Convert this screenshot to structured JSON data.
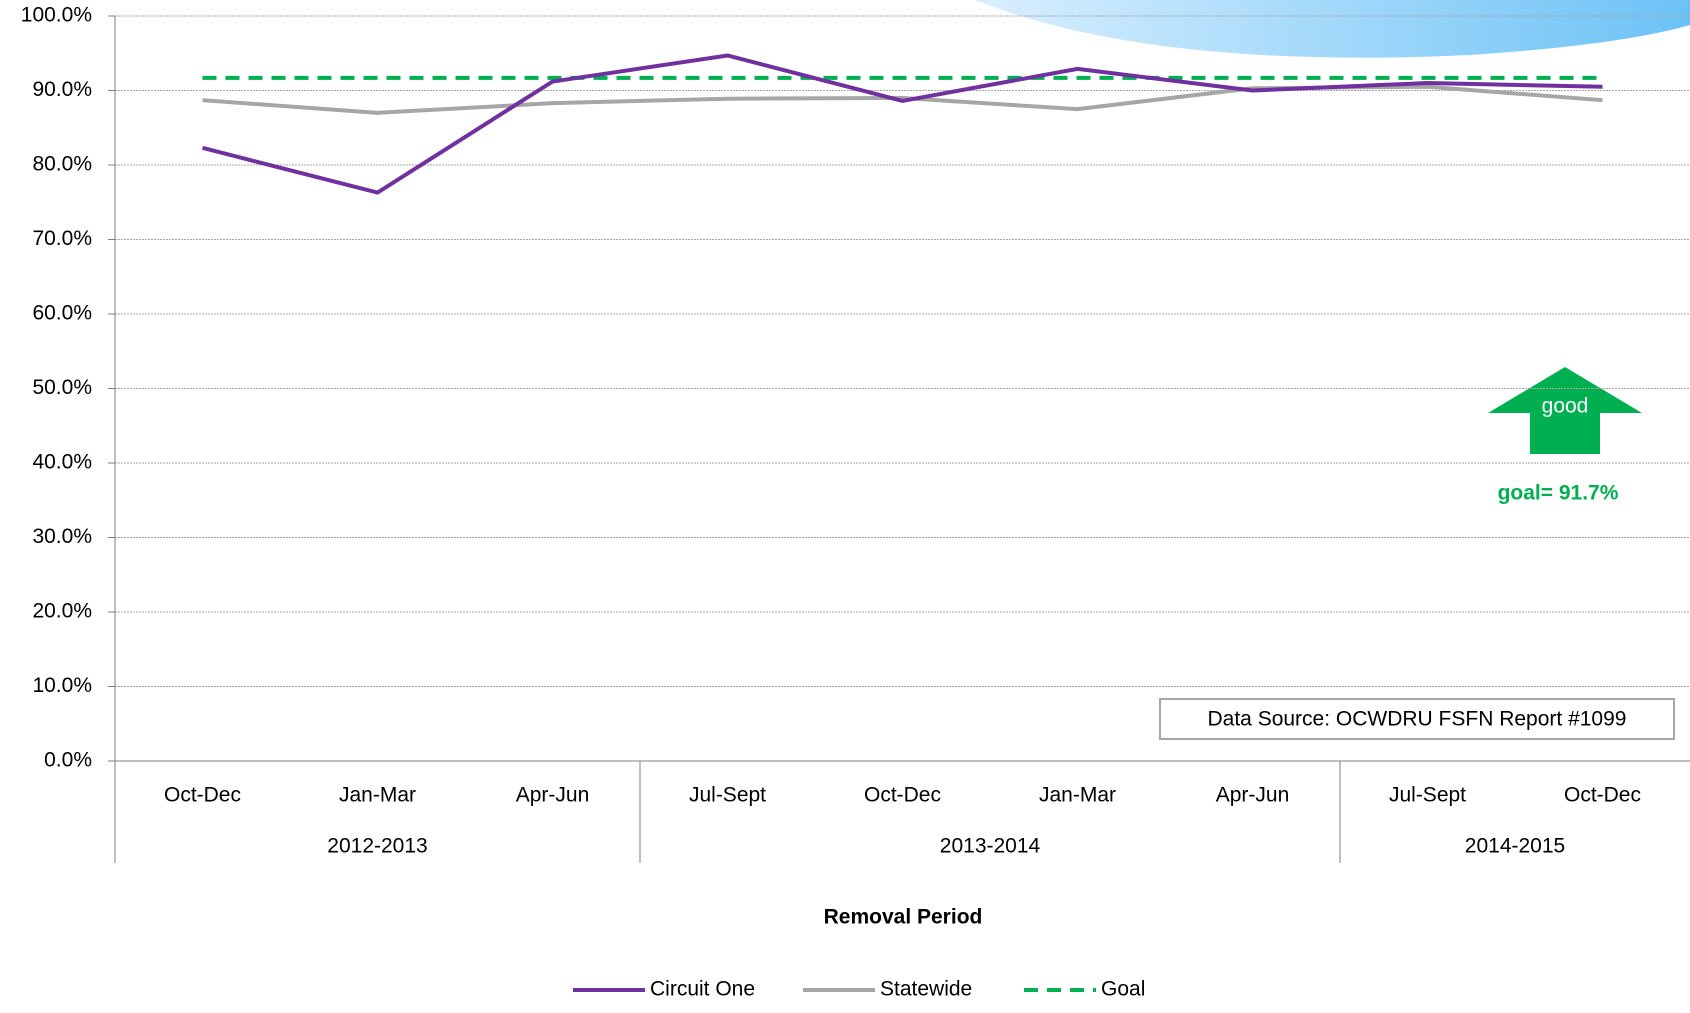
{
  "chart_data": {
    "type": "line",
    "x_label": "Removal Period",
    "categories": [
      "Oct-Dec",
      "Jan-Mar",
      "Apr-Jun",
      "Jul-Sept",
      "Oct-Dec",
      "Jan-Mar",
      "Apr-Jun",
      "Jul-Sept",
      "Oct-Dec"
    ],
    "groups": [
      {
        "label": "2012-2013",
        "count": 3
      },
      {
        "label": "2013-2014",
        "count": 4
      },
      {
        "label": "2014-2015",
        "count": 2
      }
    ],
    "series": [
      {
        "name": "Circuit One",
        "color": "#7030a0",
        "dash": false,
        "values": [
          82.3,
          76.3,
          91.2,
          94.7,
          88.6,
          92.9,
          90.0,
          91.0,
          90.5
        ]
      },
      {
        "name": "Statewide",
        "color": "#a6a6a6",
        "dash": false,
        "values": [
          88.7,
          87.0,
          88.3,
          88.9,
          89.0,
          87.5,
          90.3,
          90.5,
          88.7
        ]
      },
      {
        "name": "Goal",
        "color": "#00b050",
        "dash": true,
        "values": [
          91.7,
          91.7,
          91.7,
          91.7,
          91.7,
          91.7,
          91.7,
          91.7,
          91.7
        ]
      }
    ],
    "ylim": [
      0,
      100
    ],
    "yticks": [
      {
        "value": 0,
        "label": "0.0%"
      },
      {
        "value": 10,
        "label": "10.0%"
      },
      {
        "value": 20,
        "label": "20.0%"
      },
      {
        "value": 30,
        "label": "30.0%"
      },
      {
        "value": 40,
        "label": "40.0%"
      },
      {
        "value": 50,
        "label": "50.0%"
      },
      {
        "value": 60,
        "label": "60.0%"
      },
      {
        "value": 70,
        "label": "70.0%"
      },
      {
        "value": 80,
        "label": "80.0%"
      },
      {
        "value": 90,
        "label": "90.0%"
      },
      {
        "value": 100,
        "label": "100.0%"
      }
    ],
    "grid": true,
    "annotations": {
      "arrow": "good",
      "goal": "goal= 91.7%",
      "source": "Data Source:  OCWDRU FSFN Report #1099"
    }
  }
}
